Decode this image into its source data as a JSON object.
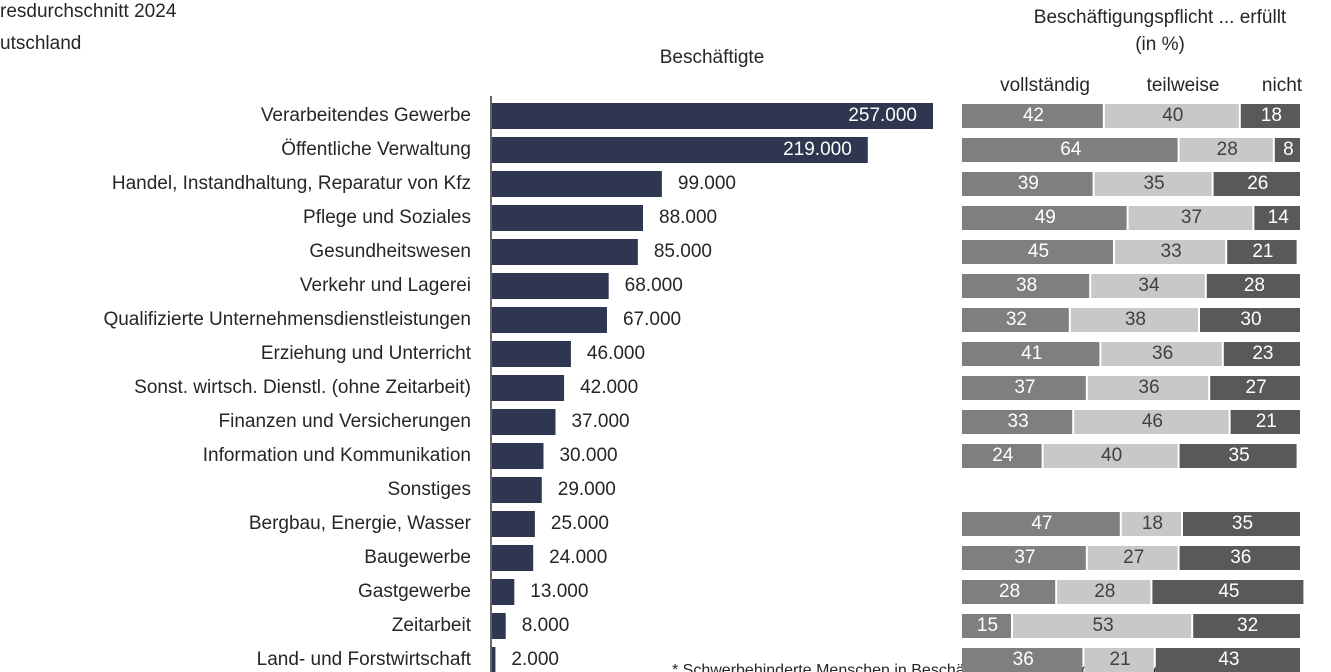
{
  "header": {
    "lines": [
      "resdurchschnitt 2024",
      "utschland"
    ]
  },
  "footnote": "* Schwerbehinderte Menschen in Beschäftigung (einschl. gleichgestellte",
  "chart_data": [
    {
      "type": "hbar",
      "title": "Beschäftigte",
      "color": "#2e3650",
      "categories": [
        "Verarbeitendes Gewerbe",
        "Öffentliche Verwaltung",
        "Handel, Instandhaltung, Reparatur von Kfz",
        "Pflege und Soziales",
        "Gesundheitswesen",
        "Verkehr und Lagerei",
        "Qualifizierte Unternehmensdienstleistungen",
        "Erziehung und Unterricht",
        "Sonst. wirtsch. Dienstl. (ohne Zeitarbeit)",
        "Finanzen und Versicherungen",
        "Information und Kommunikation",
        "Sonstiges",
        "Bergbau, Energie, Wasser",
        "Baugewerbe",
        "Gastgewerbe",
        "Zeitarbeit",
        "Land- und Forstwirtschaft"
      ],
      "values": [
        257000,
        219000,
        99000,
        88000,
        85000,
        68000,
        67000,
        46000,
        42000,
        37000,
        30000,
        29000,
        25000,
        24000,
        13000,
        8000,
        2000
      ],
      "value_labels": [
        "257.000",
        "219.000",
        "99.000",
        "88.000",
        "85.000",
        "68.000",
        "67.000",
        "46.000",
        "42.000",
        "37.000",
        "30.000",
        "29.000",
        "25.000",
        "24.000",
        "13.000",
        "8.000",
        "2.000"
      ]
    },
    {
      "type": "stacked_hbar",
      "title": "Beschäftigungspflicht ... erfüllt",
      "subtitle": "(in %)",
      "xlim": [
        0,
        100
      ],
      "series": [
        {
          "name": "vollständig",
          "color": "#7f7f7f",
          "values": [
            42,
            64,
            39,
            49,
            45,
            38,
            32,
            41,
            37,
            33,
            24,
            null,
            47,
            37,
            28,
            15,
            36
          ]
        },
        {
          "name": "teilweise",
          "color": "#c8c8c8",
          "values": [
            40,
            28,
            35,
            37,
            33,
            34,
            38,
            36,
            36,
            46,
            40,
            null,
            18,
            27,
            28,
            53,
            21
          ]
        },
        {
          "name": "nicht",
          "color": "#595959",
          "values": [
            18,
            8,
            26,
            14,
            21,
            28,
            30,
            23,
            27,
            21,
            35,
            null,
            35,
            36,
            45,
            32,
            43
          ]
        }
      ]
    }
  ]
}
